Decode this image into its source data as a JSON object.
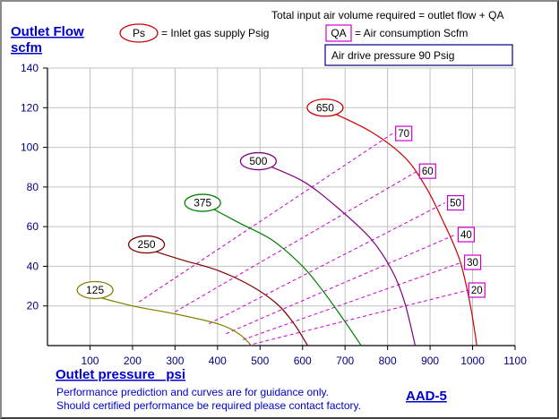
{
  "header": {
    "top_note": "Total input air volume required = outlet flow + QA",
    "ps_symbol": "Ps",
    "ps_desc": "= Inlet gas supply  Psig",
    "qa_symbol": "QA",
    "qa_desc": "= Air consumption  Scfm",
    "drive_pressure": "Air drive pressure  90 Psig"
  },
  "footer": {
    "note_line1": "Performance prediction and curves are for guidance only.",
    "note_line2": "Should certified performance be required please contact factory.",
    "model": "AAD-5"
  },
  "colors": {
    "axis_label": "#0000cc",
    "tick_label": "#000080",
    "qa_line": "#cc00cc",
    "grid": "#c0c0c0"
  },
  "chart_data": {
    "type": "line",
    "xlabel": "Outlet pressure   psi",
    "ylabel_line1": "Outlet Flow",
    "ylabel_line2": "scfm",
    "xlim": [
      0,
      1100
    ],
    "ylim": [
      0,
      140
    ],
    "xticks": [
      100,
      200,
      300,
      400,
      500,
      600,
      700,
      800,
      900,
      1000,
      1100
    ],
    "yticks": [
      20,
      40,
      60,
      80,
      100,
      120,
      140
    ],
    "grid": true,
    "series": [
      {
        "name": "125",
        "color": "#808000",
        "label_at": [
          112,
          28
        ],
        "points": [
          [
            110,
            25
          ],
          [
            200,
            20
          ],
          [
            300,
            16
          ],
          [
            400,
            11
          ],
          [
            450,
            6
          ],
          [
            480,
            0
          ]
        ]
      },
      {
        "name": "250",
        "color": "#800000",
        "label_at": [
          233,
          51
        ],
        "points": [
          [
            245,
            48
          ],
          [
            320,
            43
          ],
          [
            400,
            38
          ],
          [
            480,
            30
          ],
          [
            540,
            21
          ],
          [
            580,
            11
          ],
          [
            612,
            0
          ]
        ]
      },
      {
        "name": "375",
        "color": "#008000",
        "label_at": [
          365,
          72
        ],
        "points": [
          [
            380,
            70
          ],
          [
            450,
            62
          ],
          [
            530,
            53
          ],
          [
            600,
            40
          ],
          [
            650,
            27
          ],
          [
            700,
            12
          ],
          [
            738,
            0
          ]
        ]
      },
      {
        "name": "500",
        "color": "#800080",
        "label_at": [
          496,
          93
        ],
        "points": [
          [
            505,
            92
          ],
          [
            600,
            83
          ],
          [
            680,
            70
          ],
          [
            760,
            54
          ],
          [
            810,
            38
          ],
          [
            840,
            22
          ],
          [
            865,
            0
          ]
        ]
      },
      {
        "name": "650",
        "color": "#cc0000",
        "label_at": [
          653,
          120
        ],
        "points": [
          [
            665,
            118
          ],
          [
            760,
            108
          ],
          [
            840,
            95
          ],
          [
            890,
            80
          ],
          [
            930,
            63
          ],
          [
            970,
            43
          ],
          [
            995,
            20
          ],
          [
            1010,
            0
          ]
        ]
      }
    ],
    "air_consumption_lines": [
      {
        "label": "70",
        "label_at": [
          838,
          107
        ],
        "points": [
          [
            215,
            22
          ],
          [
            812,
            107
          ]
        ]
      },
      {
        "label": "60",
        "label_at": [
          894,
          88
        ],
        "points": [
          [
            300,
            17
          ],
          [
            870,
            88
          ]
        ]
      },
      {
        "label": "50",
        "label_at": [
          960,
          72
        ],
        "points": [
          [
            380,
            11
          ],
          [
            935,
            72
          ]
        ]
      },
      {
        "label": "40",
        "label_at": [
          985,
          56
        ],
        "points": [
          [
            420,
            6
          ],
          [
            960,
            56
          ]
        ]
      },
      {
        "label": "30",
        "label_at": [
          1000,
          42
        ],
        "points": [
          [
            460,
            3
          ],
          [
            975,
            42
          ]
        ]
      },
      {
        "label": "20",
        "label_at": [
          1010,
          28
        ],
        "points": [
          [
            470,
            0
          ],
          [
            990,
            28
          ]
        ]
      }
    ]
  }
}
